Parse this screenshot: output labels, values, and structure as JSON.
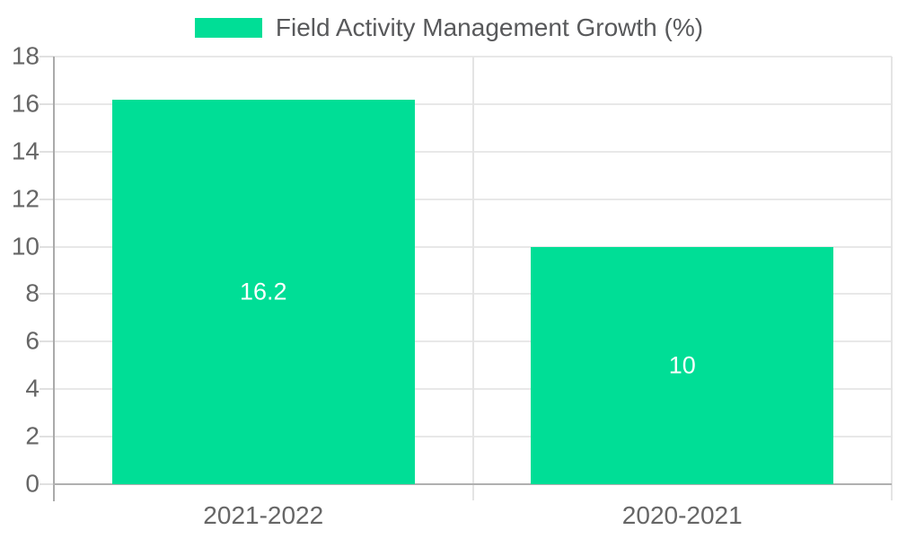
{
  "legend": {
    "label": "Field Activity Management Growth (%)"
  },
  "chart_data": {
    "type": "bar",
    "categories": [
      "2021-2022",
      "2020-2021"
    ],
    "series": [
      {
        "name": "Field Activity Management Growth (%)",
        "values": [
          16.2,
          10
        ],
        "value_labels": [
          "16.2",
          "10"
        ]
      }
    ],
    "title": "",
    "xlabel": "",
    "ylabel": "",
    "ylim": [
      0,
      18
    ],
    "yticks": [
      0,
      2,
      4,
      6,
      8,
      10,
      12,
      14,
      16,
      18
    ],
    "grid": true,
    "legend_position": "top-center",
    "colors": {
      "bar": "#00de96",
      "bar_label": "#ffffff",
      "grid": "#e8e8e8",
      "axis": "#b0b0b0",
      "tick_label": "#666666",
      "legend_text": "#58595b",
      "background": "#ffffff"
    }
  }
}
